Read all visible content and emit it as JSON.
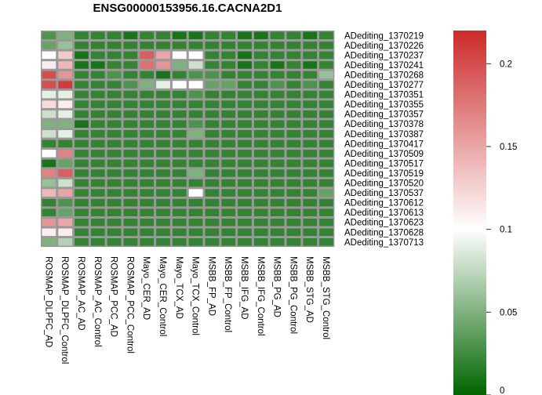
{
  "chart_data": {
    "type": "heatmap",
    "title": "ENSG00000153956.16.CACNA2D1",
    "columns": [
      "ROSMAP_DLPFC_AD",
      "ROSMAP_DLPFC_Control",
      "ROSMAP_AC_AD",
      "ROSMAP_AC_Control",
      "ROSMAP_PCC_AD",
      "ROSMAP_PCC_Control",
      "Mayo_CER_AD",
      "Mayo_CER_Control",
      "Mayo_TCX_AD",
      "Mayo_TCX_Control",
      "MSBB_FP_AD",
      "MSBB_FP_Control",
      "MSBB_IFG_AD",
      "MSBB_IFG_Control",
      "MSBB_PG_AD",
      "MSBB_PG_Control",
      "MSBB_STG_AD",
      "MSBB_STG_Control"
    ],
    "rows": [
      "ADediting_1370219",
      "ADediting_1370226",
      "ADediting_1370237",
      "ADediting_1370241",
      "ADediting_1370268",
      "ADediting_1370277",
      "ADediting_1370351",
      "ADediting_1370355",
      "ADediting_1370357",
      "ADediting_1370378",
      "ADediting_1370387",
      "ADediting_1370417",
      "ADediting_1370509",
      "ADediting_1370517",
      "ADediting_1370519",
      "ADediting_1370520",
      "ADediting_1370537",
      "ADediting_1370612",
      "ADediting_1370613",
      "ADediting_1370623",
      "ADediting_1370628",
      "ADediting_1370713"
    ],
    "values": [
      [
        0.03,
        0.05,
        0.02,
        0.02,
        0.02,
        0.01,
        0.02,
        0.02,
        0.01,
        0.01,
        0.02,
        0.02,
        0.01,
        0.01,
        0.02,
        0.02,
        0.01,
        0.02
      ],
      [
        0.04,
        0.06,
        0.02,
        0.02,
        0.02,
        0.02,
        0.02,
        0.02,
        0.02,
        0.02,
        0.02,
        0.02,
        0.02,
        0.02,
        0.02,
        0.02,
        0.02,
        0.02
      ],
      [
        0.1,
        0.13,
        0.01,
        0.02,
        0.02,
        0.02,
        0.19,
        0.15,
        0.1,
        0.1,
        0.02,
        0.02,
        0.01,
        0.02,
        0.02,
        0.02,
        0.02,
        0.02
      ],
      [
        0.11,
        0.14,
        0.01,
        0.01,
        0.02,
        0.02,
        0.18,
        0.16,
        0.05,
        0.08,
        0.02,
        0.02,
        0.01,
        0.02,
        0.01,
        0.02,
        0.01,
        0.02
      ],
      [
        0.2,
        0.16,
        0.02,
        0.02,
        0.03,
        0.02,
        0.02,
        0.01,
        0.02,
        0.03,
        0.03,
        0.02,
        0.02,
        0.02,
        0.02,
        0.02,
        0.02,
        0.06
      ],
      [
        0.2,
        0.21,
        0.02,
        0.02,
        0.02,
        0.03,
        0.05,
        0.09,
        0.1,
        0.1,
        0.04,
        0.04,
        0.02,
        0.02,
        0.03,
        0.02,
        0.03,
        0.02
      ],
      [
        0.09,
        0.09,
        0.02,
        0.02,
        0.02,
        0.02,
        0.02,
        0.02,
        0.02,
        0.03,
        0.02,
        0.02,
        0.02,
        0.02,
        0.02,
        0.02,
        0.02,
        0.02
      ],
      [
        0.12,
        0.11,
        0.02,
        0.02,
        0.02,
        0.02,
        0.02,
        0.02,
        0.02,
        0.02,
        0.02,
        0.02,
        0.02,
        0.02,
        0.02,
        0.02,
        0.02,
        0.02
      ],
      [
        0.08,
        0.09,
        0.02,
        0.02,
        0.02,
        0.02,
        0.02,
        0.02,
        0.02,
        0.02,
        0.02,
        0.02,
        0.02,
        0.02,
        0.02,
        0.02,
        0.02,
        0.02
      ],
      [
        0.05,
        0.05,
        0.01,
        0.02,
        0.02,
        0.02,
        0.02,
        0.02,
        0.02,
        0.03,
        0.02,
        0.02,
        0.02,
        0.02,
        0.02,
        0.02,
        0.02,
        0.02
      ],
      [
        0.08,
        0.09,
        0.02,
        0.02,
        0.02,
        0.02,
        0.02,
        0.02,
        0.02,
        0.05,
        0.02,
        0.02,
        0.02,
        0.02,
        0.02,
        0.02,
        0.02,
        0.02
      ],
      [
        0.02,
        0.02,
        0.02,
        0.02,
        0.02,
        0.02,
        0.02,
        0.02,
        0.02,
        0.02,
        0.02,
        0.02,
        0.02,
        0.02,
        0.02,
        0.02,
        0.02,
        0.02
      ],
      [
        0.1,
        0.17,
        0.02,
        0.02,
        0.02,
        0.02,
        0.02,
        0.02,
        0.02,
        0.02,
        0.02,
        0.02,
        0.02,
        0.02,
        0.02,
        0.02,
        0.02,
        0.02
      ],
      [
        0.01,
        0.04,
        0.02,
        0.02,
        0.02,
        0.02,
        0.02,
        0.02,
        0.02,
        0.02,
        0.02,
        0.02,
        0.02,
        0.02,
        0.02,
        0.02,
        0.02,
        0.02
      ],
      [
        0.17,
        0.19,
        0.02,
        0.02,
        0.02,
        0.02,
        0.02,
        0.02,
        0.02,
        0.05,
        0.02,
        0.02,
        0.02,
        0.02,
        0.02,
        0.02,
        0.02,
        0.02
      ],
      [
        0.06,
        0.08,
        0.02,
        0.02,
        0.02,
        0.02,
        0.02,
        0.02,
        0.02,
        0.02,
        0.02,
        0.02,
        0.02,
        0.02,
        0.02,
        0.02,
        0.02,
        0.02
      ],
      [
        0.14,
        0.15,
        0.02,
        0.02,
        0.02,
        0.02,
        0.02,
        0.02,
        0.02,
        0.1,
        0.02,
        0.02,
        0.02,
        0.02,
        0.02,
        0.02,
        0.02,
        0.04
      ],
      [
        0.02,
        0.03,
        0.02,
        0.02,
        0.02,
        0.02,
        0.02,
        0.02,
        0.02,
        0.02,
        0.02,
        0.02,
        0.02,
        0.02,
        0.02,
        0.02,
        0.02,
        0.02
      ],
      [
        0.02,
        0.04,
        0.02,
        0.02,
        0.02,
        0.02,
        0.02,
        0.02,
        0.02,
        0.02,
        0.02,
        0.02,
        0.02,
        0.02,
        0.02,
        0.02,
        0.02,
        0.02
      ],
      [
        0.16,
        0.15,
        0.02,
        0.02,
        0.02,
        0.02,
        0.02,
        0.02,
        0.02,
        0.02,
        0.02,
        0.02,
        0.02,
        0.02,
        0.02,
        0.02,
        0.02,
        0.02
      ],
      [
        0.11,
        0.11,
        0.02,
        0.02,
        0.02,
        0.02,
        0.02,
        0.02,
        0.02,
        0.02,
        0.02,
        0.02,
        0.02,
        0.02,
        0.02,
        0.02,
        0.02,
        0.02
      ],
      [
        0.05,
        0.07,
        0.02,
        0.02,
        0.02,
        0.02,
        0.02,
        0.02,
        0.02,
        0.02,
        0.02,
        0.02,
        0.02,
        0.02,
        0.02,
        0.02,
        0.02,
        0.02
      ]
    ],
    "scale": {
      "min": 0,
      "max": 0.22,
      "mid": 0.1,
      "ticks": [
        0,
        0.05,
        0.1,
        0.15,
        0.2
      ]
    },
    "colors": {
      "low": "#006400",
      "mid": "#ffffff",
      "high": "#cc2a2a",
      "grid": "#999999"
    },
    "legend_position": "right"
  }
}
